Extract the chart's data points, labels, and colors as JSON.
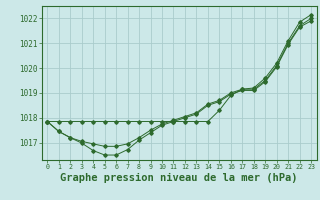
{
  "background_color": "#cce8e8",
  "grid_color": "#aacccc",
  "line_color": "#2d6a2d",
  "marker_color": "#2d6a2d",
  "xlabel": "Graphe pression niveau de la mer (hPa)",
  "xlabel_fontsize": 7.5,
  "yticks": [
    1017,
    1018,
    1019,
    1020,
    1021,
    1022
  ],
  "xticks": [
    0,
    1,
    2,
    3,
    4,
    5,
    6,
    7,
    8,
    9,
    10,
    11,
    12,
    13,
    14,
    15,
    16,
    17,
    18,
    19,
    20,
    21,
    22,
    23
  ],
  "ylim": [
    1016.3,
    1022.5
  ],
  "xlim": [
    -0.5,
    23.5
  ],
  "series1": [
    1017.85,
    1017.85,
    1017.85,
    1017.85,
    1017.85,
    1017.85,
    1017.85,
    1017.85,
    1017.85,
    1017.85,
    1017.85,
    1017.85,
    1017.85,
    1017.85,
    1017.85,
    1018.3,
    1018.9,
    1019.15,
    1019.2,
    1019.6,
    1020.2,
    1021.1,
    1021.85,
    1022.15
  ],
  "series2": [
    1017.85,
    1017.45,
    1017.2,
    1017.05,
    1016.95,
    1016.85,
    1016.85,
    1016.95,
    1017.2,
    1017.5,
    1017.75,
    1017.9,
    1018.05,
    1018.2,
    1018.55,
    1018.7,
    1019.0,
    1019.15,
    1019.15,
    1019.5,
    1020.1,
    1021.0,
    1021.7,
    1022.0
  ],
  "series3": [
    1017.85,
    1017.45,
    1017.2,
    1016.98,
    1016.68,
    1016.5,
    1016.5,
    1016.72,
    1017.1,
    1017.4,
    1017.7,
    1017.85,
    1018.0,
    1018.15,
    1018.5,
    1018.65,
    1018.95,
    1019.1,
    1019.1,
    1019.45,
    1020.05,
    1020.95,
    1021.65,
    1021.9
  ]
}
